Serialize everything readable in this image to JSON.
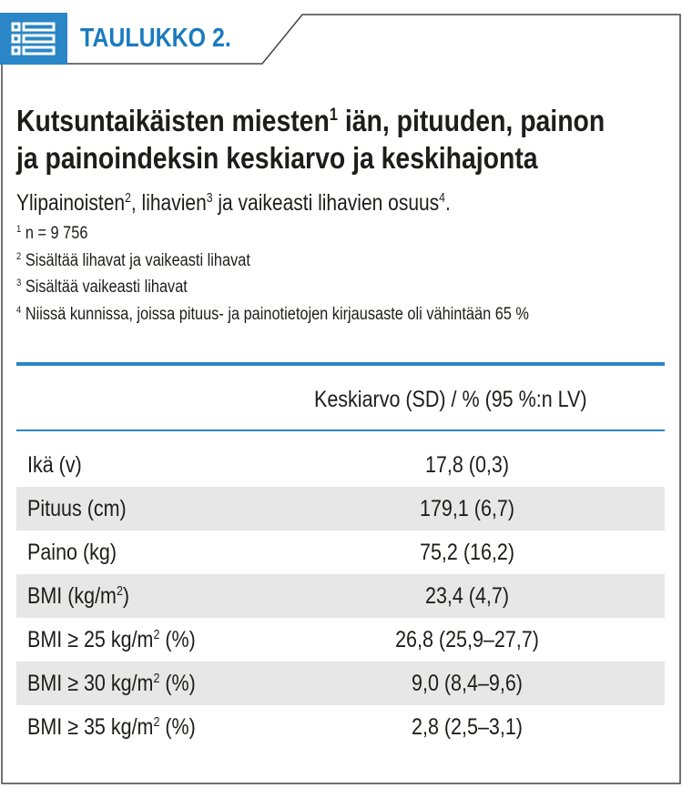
{
  "header": {
    "tag": "TAULUKKO 2."
  },
  "title": {
    "line1_a": "Kutsuntaikäisten miesten",
    "line1_sup": "1",
    "line1_b": " iän, pituuden, painon",
    "line2": "ja painoindeksin keskiarvo ja keskihajonta"
  },
  "subtitle": {
    "t1": "Ylipainoisten",
    "s1": "2",
    "t2": ", lihavien",
    "s2": "3",
    "t3": " ja vaikeasti lihavien osuus",
    "s3": "4",
    "t4": "."
  },
  "notes": [
    {
      "sup": "1",
      "text": " n = 9 756"
    },
    {
      "sup": "2",
      "text": " Sisältää lihavat ja vaikeasti lihavat"
    },
    {
      "sup": "3",
      "text": " Sisältää vaikeasti lihavat"
    },
    {
      "sup": "4",
      "text": " Niissä kunnissa, joissa pituus- ja painotietojen kirjausaste oli vähintään 65 %"
    }
  ],
  "table": {
    "column_header": "Keskiarvo (SD) / % (95 %:n LV)",
    "rows": [
      {
        "label": "Ikä (v)",
        "sup": "",
        "label_tail": "",
        "value": "17,8 (0,3)"
      },
      {
        "label": "Pituus (cm)",
        "sup": "",
        "label_tail": "",
        "value": "179,1 (6,7)"
      },
      {
        "label": "Paino (kg)",
        "sup": "",
        "label_tail": "",
        "value": "75,2 (16,2)"
      },
      {
        "label": "BMI (kg/m",
        "sup": "2",
        "label_tail": ")",
        "value": "23,4 (4,7)"
      },
      {
        "label": "BMI ≥ 25 kg/m",
        "sup": "2",
        "label_tail": " (%)",
        "value": "26,8 (25,9–27,7)"
      },
      {
        "label": "BMI ≥ 30 kg/m",
        "sup": "2",
        "label_tail": " (%)",
        "value": "9,0 (8,4–9,6)"
      },
      {
        "label": "BMI ≥ 35 kg/m",
        "sup": "2",
        "label_tail": " (%)",
        "value": "2,8 (2,5–3,1)"
      }
    ]
  },
  "colors": {
    "accent": "#2a86c6",
    "tag_text": "#1a7ac0",
    "row_shade": "#e7e7e7",
    "frame": "#444444"
  },
  "icons": {
    "header_icon": "table-list-icon"
  }
}
